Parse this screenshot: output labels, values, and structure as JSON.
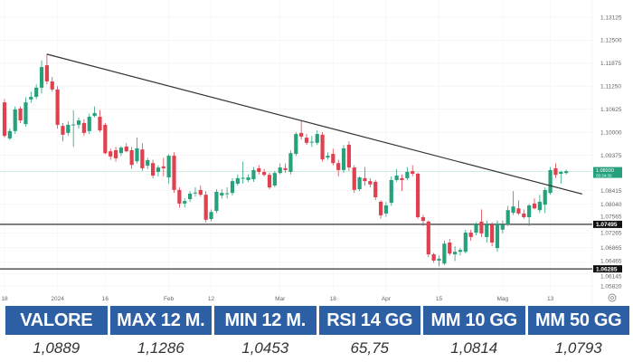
{
  "chart_data": {
    "type": "candlestick",
    "title": "",
    "ylim": [
      1.0582,
      1.13125
    ],
    "y_ticks": [
      "1.13125",
      "1.12500",
      "1.11875",
      "1.11250",
      "1.10625",
      "1.10000",
      "1.09375",
      "1.08415",
      "1.08040",
      "1.07565",
      "1.07265",
      "1.06865",
      "1.06465",
      "1.06145",
      "1.05820"
    ],
    "x_ticks": [
      {
        "label": "18",
        "index": 0
      },
      {
        "label": "2024",
        "index": 10
      },
      {
        "label": "16",
        "index": 19
      },
      {
        "label": "Feb",
        "index": 31
      },
      {
        "label": "12",
        "index": 39
      },
      {
        "label": "Mar",
        "index": 52
      },
      {
        "label": "18",
        "index": 62
      },
      {
        "label": "Apr",
        "index": 72
      },
      {
        "label": "15",
        "index": 82
      },
      {
        "label": "Mag",
        "index": 94
      },
      {
        "label": "13",
        "index": 103
      }
    ],
    "colors": {
      "up": "#26a17b",
      "down": "#e0414f",
      "line": "#333333",
      "tag_current": "#26a17b",
      "tag_level": "#111111"
    },
    "candles_ohlc": [
      [
        1.1081,
        1.109,
        1.0985,
        1.099
      ],
      [
        1.0983,
        1.101,
        1.0978,
        1.1003
      ],
      [
        1.1003,
        1.107,
        1.0995,
        1.1062
      ],
      [
        1.1064,
        1.107,
        1.1025,
        1.1032
      ],
      [
        1.1022,
        1.1095,
        1.1015,
        1.1081
      ],
      [
        1.1089,
        1.111,
        1.108,
        1.1096
      ],
      [
        1.1096,
        1.113,
        1.109,
        1.1121
      ],
      [
        1.1121,
        1.1195,
        1.1105,
        1.1177
      ],
      [
        1.1182,
        1.1213,
        1.113,
        1.1138
      ],
      [
        1.1138,
        1.115,
        1.111,
        1.1116
      ],
      [
        1.1116,
        1.1125,
        1.101,
        1.102
      ],
      [
        1.1017,
        1.1025,
        1.0975,
        1.0993
      ],
      [
        1.0998,
        1.103,
        1.099,
        1.102
      ],
      [
        1.102,
        1.106,
        1.096,
        1.1021
      ],
      [
        1.102,
        1.104,
        1.101,
        1.1032
      ],
      [
        1.1025,
        1.1035,
        1.099,
        1.0998
      ],
      [
        1.1003,
        1.105,
        1.0995,
        1.1042
      ],
      [
        1.1044,
        1.107,
        1.104,
        1.1052
      ],
      [
        1.1042,
        1.106,
        1.1,
        1.1005
      ],
      [
        1.102,
        1.1025,
        1.094,
        1.0943
      ],
      [
        1.0948,
        1.0955,
        1.0925,
        1.0934
      ],
      [
        1.0951,
        1.096,
        1.092,
        1.0929
      ],
      [
        1.0943,
        1.0962,
        1.0935,
        1.0958
      ],
      [
        1.0961,
        1.097,
        1.0945,
        1.0948
      ],
      [
        1.0951,
        1.096,
        1.09,
        1.0911
      ],
      [
        1.0921,
        1.0985,
        1.0915,
        1.0956
      ],
      [
        1.0953,
        1.097,
        1.0895,
        1.0902
      ],
      [
        1.0909,
        1.093,
        1.09,
        1.0924
      ],
      [
        1.0916,
        1.0925,
        1.0875,
        1.0882
      ],
      [
        1.0892,
        1.091,
        1.088,
        1.0904
      ],
      [
        1.0907,
        1.093,
        1.088,
        1.0902
      ],
      [
        1.0877,
        1.094,
        1.086,
        1.0936
      ],
      [
        1.0936,
        1.0945,
        1.0835,
        1.0843
      ],
      [
        1.0843,
        1.085,
        1.0795,
        1.0806
      ],
      [
        1.0806,
        1.082,
        1.0795,
        1.0813
      ],
      [
        1.0818,
        1.084,
        1.081,
        1.0833
      ],
      [
        1.0835,
        1.085,
        1.0825,
        1.0836
      ],
      [
        1.0843,
        1.0855,
        1.0825,
        1.083
      ],
      [
        1.083,
        1.084,
        1.0755,
        1.0762
      ],
      [
        1.0764,
        1.079,
        1.0758,
        1.0783
      ],
      [
        1.0786,
        1.0845,
        1.078,
        1.0838
      ],
      [
        1.0828,
        1.0845,
        1.082,
        1.0835
      ],
      [
        1.0833,
        1.085,
        1.082,
        1.0834
      ],
      [
        1.0835,
        1.0875,
        1.0828,
        1.0867
      ],
      [
        1.086,
        1.0885,
        1.0855,
        1.0875
      ],
      [
        1.0875,
        1.092,
        1.086,
        1.0876
      ],
      [
        1.087,
        1.0885,
        1.0865,
        1.0877
      ],
      [
        1.0872,
        1.0905,
        1.0865,
        1.0897
      ],
      [
        1.0902,
        1.091,
        1.0885,
        1.0892
      ],
      [
        1.0892,
        1.09,
        1.088,
        1.0884
      ],
      [
        1.0884,
        1.089,
        1.0845,
        1.085
      ],
      [
        1.0855,
        1.0895,
        1.085,
        1.0889
      ],
      [
        1.0889,
        1.0915,
        1.0885,
        1.0904
      ],
      [
        1.0902,
        1.0915,
        1.089,
        1.0897
      ],
      [
        1.0892,
        1.095,
        1.0885,
        1.0943
      ],
      [
        1.0941,
        1.1,
        1.0935,
        1.0995
      ],
      [
        1.0998,
        1.103,
        1.098,
        1.0988
      ],
      [
        1.0985,
        1.0995,
        1.0965,
        1.0971
      ],
      [
        1.0973,
        1.099,
        1.096,
        1.0974
      ],
      [
        1.0971,
        1.1005,
        1.0965,
        1.0995
      ],
      [
        1.0993,
        1.1,
        1.092,
        1.0926
      ],
      [
        1.0931,
        1.0945,
        1.0925,
        1.0936
      ],
      [
        1.0941,
        1.0955,
        1.091,
        1.0916
      ],
      [
        1.0916,
        1.0925,
        1.088,
        1.0897
      ],
      [
        1.0897,
        1.0965,
        1.089,
        1.0956
      ],
      [
        1.0966,
        1.0975,
        1.0895,
        1.0904
      ],
      [
        1.0904,
        1.091,
        1.0835,
        1.0843
      ],
      [
        1.0845,
        1.088,
        1.084,
        1.0877
      ],
      [
        1.0875,
        1.0905,
        1.0855,
        1.0867
      ],
      [
        1.0867,
        1.0875,
        1.085,
        1.0858
      ],
      [
        1.0865,
        1.087,
        1.0815,
        1.0823
      ],
      [
        1.0811,
        1.0815,
        1.0765,
        1.0774
      ],
      [
        1.0779,
        1.081,
        1.077,
        1.0801
      ],
      [
        1.0808,
        1.088,
        1.08,
        1.087
      ],
      [
        1.087,
        1.09,
        1.0865,
        1.0882
      ],
      [
        1.0875,
        1.0885,
        1.084,
        1.087
      ],
      [
        1.0875,
        1.0905,
        1.087,
        1.0892
      ],
      [
        1.0894,
        1.091,
        1.088,
        1.0887
      ],
      [
        1.0887,
        1.089,
        1.0765,
        1.0769
      ],
      [
        1.0769,
        1.0775,
        1.0745,
        1.0759
      ],
      [
        1.0757,
        1.076,
        1.066,
        1.0668
      ],
      [
        1.0668,
        1.0672,
        1.0645,
        1.0651
      ],
      [
        1.0651,
        1.0665,
        1.0635,
        1.0656
      ],
      [
        1.0643,
        1.0705,
        1.0638,
        1.0697
      ],
      [
        1.07,
        1.071,
        1.0665,
        1.067
      ],
      [
        1.0668,
        1.069,
        1.065,
        1.0675
      ],
      [
        1.0675,
        1.0685,
        1.0665,
        1.068
      ],
      [
        1.0675,
        1.0735,
        1.067,
        1.0727
      ],
      [
        1.0727,
        1.0735,
        1.0705,
        1.0715
      ],
      [
        1.0727,
        1.0755,
        1.072,
        1.0749
      ],
      [
        1.0757,
        1.079,
        1.0715,
        1.0725
      ],
      [
        1.0715,
        1.076,
        1.07,
        1.0749
      ],
      [
        1.0749,
        1.0755,
        1.069,
        1.07
      ],
      [
        1.0685,
        1.076,
        1.0675,
        1.0752
      ],
      [
        1.0735,
        1.076,
        1.0725,
        1.0749
      ],
      [
        1.0749,
        1.08,
        1.0745,
        1.0788
      ],
      [
        1.0781,
        1.084,
        1.0775,
        1.0798
      ],
      [
        1.0793,
        1.0815,
        1.0775,
        1.0779
      ],
      [
        1.0779,
        1.079,
        1.0765,
        1.0769
      ],
      [
        1.0769,
        1.0805,
        1.0745,
        1.0801
      ],
      [
        1.0806,
        1.082,
        1.079,
        1.0793
      ],
      [
        1.0788,
        1.083,
        1.078,
        1.0811
      ],
      [
        1.0803,
        1.085,
        1.078,
        1.0843
      ],
      [
        1.0835,
        1.0905,
        1.083,
        1.0897
      ],
      [
        1.0902,
        1.0915,
        1.0875,
        1.0884
      ],
      [
        1.0887,
        1.0895,
        1.086,
        1.0892
      ],
      [
        1.0889,
        1.0898,
        1.0885,
        1.0894
      ]
    ],
    "trendline": {
      "start": {
        "index": 8,
        "price": 1.1212
      },
      "end": {
        "index": 109,
        "price": 1.0832
      }
    },
    "horizontal_levels": [
      {
        "price": 1.07495,
        "label": "1.07495"
      },
      {
        "price": 1.06285,
        "label": "1.06285"
      }
    ],
    "current_price": {
      "price": 1.0893,
      "label": "1.08930",
      "sublabel": "05:34:30"
    }
  },
  "table": {
    "headers": [
      "VALORE",
      "MAX 12 M.",
      "MIN 12 M.",
      "RSI 14 GG",
      "MM 10 GG",
      "MM 50 GG"
    ],
    "values": [
      "1,0889",
      "1,1286",
      "1,0453",
      "65,75",
      "1,0814",
      "1,0793"
    ]
  }
}
